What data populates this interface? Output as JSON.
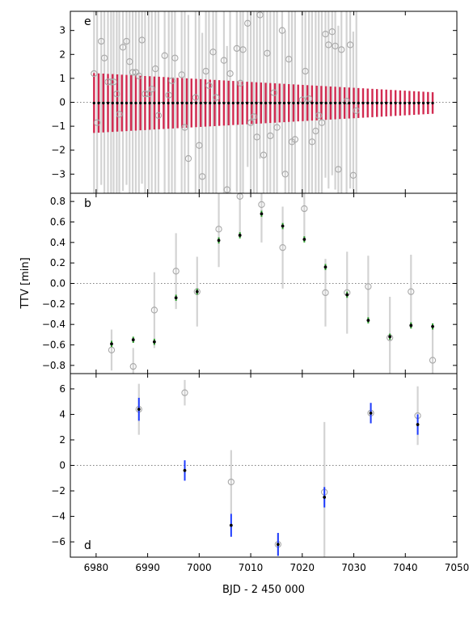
{
  "figure": {
    "ylabel": "TTV [min]",
    "xlabel": "BJD - 2 450 000"
  },
  "colors": {
    "observed": "#a8a8a8",
    "errorbar_obs": "#d3d3d3",
    "model": "#000000",
    "model_err_e": "#d22a50",
    "model_err_b": "#2ca02c",
    "model_err_d": "#1f3cff",
    "zero_line": "#808080"
  },
  "chart_data": [
    {
      "type": "scatter",
      "panel": "e",
      "xlim": [
        6975,
        7050
      ],
      "ylim": [
        -3.8,
        3.8
      ],
      "yticks": [
        -3,
        -2,
        -1,
        0,
        1,
        2,
        3
      ],
      "xticks": [
        6980,
        6990,
        7000,
        7010,
        7020,
        7030,
        7040,
        7050
      ],
      "x_start": 6979.6,
      "period": 0.9,
      "model_start": -0.03,
      "model_err_start": 1.25,
      "model_err_end": 0.45,
      "observed": [
        {
          "x": 6979.6,
          "y": 1.2
        },
        {
          "x": 6980.2,
          "y": -0.85
        },
        {
          "x": 6981.0,
          "y": 2.55
        },
        {
          "x": 6981.6,
          "y": 1.85
        },
        {
          "x": 6982.3,
          "y": 0.85
        },
        {
          "x": 6982.9,
          "y": 0.85
        },
        {
          "x": 6983.4,
          "y": 0.85
        },
        {
          "x": 6984.0,
          "y": 0.35
        },
        {
          "x": 6984.5,
          "y": -0.5
        },
        {
          "x": 6985.2,
          "y": 2.3
        },
        {
          "x": 6985.9,
          "y": 2.55
        },
        {
          "x": 6986.5,
          "y": 1.7
        },
        {
          "x": 6987.1,
          "y": 1.25
        },
        {
          "x": 6987.7,
          "y": 1.25
        },
        {
          "x": 6988.3,
          "y": 1.1
        },
        {
          "x": 6988.9,
          "y": 2.6
        },
        {
          "x": 6989.5,
          "y": 0.35
        },
        {
          "x": 6990.2,
          "y": 0.35
        },
        {
          "x": 6990.8,
          "y": 0.55
        },
        {
          "x": 6991.5,
          "y": 1.4
        },
        {
          "x": 6992.1,
          "y": -0.55
        },
        {
          "x": 6993.3,
          "y": 1.95
        },
        {
          "x": 6994.1,
          "y": 0.3
        },
        {
          "x": 6994.7,
          "y": 0.9
        },
        {
          "x": 6995.3,
          "y": 1.85
        },
        {
          "x": 6996.6,
          "y": 1.15
        },
        {
          "x": 6997.2,
          "y": -1.05
        },
        {
          "x": 6997.9,
          "y": -2.35
        },
        {
          "x": 6999.3,
          "y": 0.2
        },
        {
          "x": 7000.0,
          "y": -1.8
        },
        {
          "x": 7000.6,
          "y": -3.1
        },
        {
          "x": 7001.3,
          "y": 1.3
        },
        {
          "x": 7001.9,
          "y": 0.7
        },
        {
          "x": 7002.7,
          "y": 2.1
        },
        {
          "x": 7003.3,
          "y": 0.2
        },
        {
          "x": 7004.8,
          "y": 1.75
        },
        {
          "x": 7005.4,
          "y": -3.65
        },
        {
          "x": 7006.0,
          "y": 1.2
        },
        {
          "x": 7007.3,
          "y": 2.25
        },
        {
          "x": 7008.0,
          "y": 0.8
        },
        {
          "x": 7008.5,
          "y": 2.2
        },
        {
          "x": 7009.4,
          "y": 3.3
        },
        {
          "x": 7010.0,
          "y": -0.85
        },
        {
          "x": 7010.6,
          "y": -0.6
        },
        {
          "x": 7011.2,
          "y": -1.45
        },
        {
          "x": 7011.8,
          "y": 3.65
        },
        {
          "x": 7012.5,
          "y": -2.2
        },
        {
          "x": 7013.2,
          "y": 2.05
        },
        {
          "x": 7013.8,
          "y": -1.4
        },
        {
          "x": 7014.5,
          "y": 0.4
        },
        {
          "x": 7015.1,
          "y": -1.05
        },
        {
          "x": 7016.1,
          "y": 3.0
        },
        {
          "x": 7016.7,
          "y": -3.0
        },
        {
          "x": 7017.4,
          "y": 1.8
        },
        {
          "x": 7018.0,
          "y": -1.65
        },
        {
          "x": 7018.6,
          "y": -1.55
        },
        {
          "x": 7020.0,
          "y": 0.1
        },
        {
          "x": 7020.6,
          "y": 1.3
        },
        {
          "x": 7021.3,
          "y": 0.15
        },
        {
          "x": 7021.9,
          "y": -1.65
        },
        {
          "x": 7022.6,
          "y": -1.2
        },
        {
          "x": 7023.2,
          "y": -0.55
        },
        {
          "x": 7023.8,
          "y": -0.85
        },
        {
          "x": 7024.5,
          "y": 2.85
        },
        {
          "x": 7025.1,
          "y": 2.4
        },
        {
          "x": 7025.8,
          "y": 2.95
        },
        {
          "x": 7026.4,
          "y": 2.35
        },
        {
          "x": 7027.0,
          "y": -2.8
        },
        {
          "x": 7027.6,
          "y": 2.2
        },
        {
          "x": 7028.6,
          "y": 0.05
        },
        {
          "x": 7029.3,
          "y": 2.4
        },
        {
          "x": 7029.9,
          "y": -3.05
        },
        {
          "x": 7030.5,
          "y": -0.35
        }
      ]
    },
    {
      "type": "scatter",
      "panel": "b",
      "xlim": [
        6975,
        7050
      ],
      "ylim": [
        -0.88,
        0.88
      ],
      "yticks": [
        -0.8,
        -0.6,
        -0.4,
        -0.2,
        0.0,
        0.2,
        0.4,
        0.6,
        0.8
      ],
      "xticks": [
        6980,
        6990,
        7000,
        7010,
        7020,
        7030,
        7040,
        7050
      ],
      "points": [
        {
          "x": 6983.0,
          "obs": -0.65,
          "obs_err": 0.2,
          "model": -0.59,
          "model_err": 0.03
        },
        {
          "x": 6987.2,
          "obs": -0.81,
          "obs_err": 0.18,
          "model": -0.55,
          "model_err": 0.03
        },
        {
          "x": 6991.3,
          "obs": -0.26,
          "obs_err": 0.37,
          "model": -0.57,
          "model_err": 0.03
        },
        {
          "x": 6995.5,
          "obs": 0.12,
          "obs_err": 0.37,
          "model": -0.14,
          "model_err": 0.03
        },
        {
          "x": 6999.6,
          "obs": -0.08,
          "obs_err": 0.34,
          "model": -0.08,
          "model_err": 0.03
        },
        {
          "x": 7003.8,
          "obs": 0.53,
          "obs_err": 0.37,
          "model": 0.42,
          "model_err": 0.03
        },
        {
          "x": 7007.9,
          "obs": 0.85,
          "obs_err": 0.36,
          "model": 0.47,
          "model_err": 0.03
        },
        {
          "x": 7012.1,
          "obs": 0.77,
          "obs_err": 0.37,
          "model": 0.68,
          "model_err": 0.03
        },
        {
          "x": 7016.2,
          "obs": 0.35,
          "obs_err": 0.4,
          "model": 0.56,
          "model_err": 0.03
        },
        {
          "x": 7020.4,
          "obs": 0.73,
          "obs_err": 0.28,
          "model": 0.43,
          "model_err": 0.03
        },
        {
          "x": 7024.5,
          "obs": -0.09,
          "obs_err": 0.33,
          "model": 0.16,
          "model_err": 0.03
        },
        {
          "x": 7028.7,
          "obs": -0.09,
          "obs_err": 0.4,
          "model": -0.11,
          "model_err": 0.03
        },
        {
          "x": 7032.8,
          "obs": -0.03,
          "obs_err": 0.3,
          "model": -0.36,
          "model_err": 0.03
        },
        {
          "x": 7037.0,
          "obs": -0.53,
          "obs_err": 0.4,
          "model": -0.52,
          "model_err": 0.03
        },
        {
          "x": 7041.1,
          "obs": -0.08,
          "obs_err": 0.36,
          "model": -0.41,
          "model_err": 0.03
        },
        {
          "x": 7045.3,
          "obs": -0.75,
          "obs_err": 0.33,
          "model": -0.42,
          "model_err": 0.03
        }
      ]
    },
    {
      "type": "scatter",
      "panel": "d",
      "xlim": [
        6975,
        7050
      ],
      "ylim": [
        -7.2,
        7.2
      ],
      "yticks": [
        -6,
        -4,
        -2,
        0,
        2,
        4,
        6
      ],
      "xticks": [
        6980,
        6990,
        7000,
        7010,
        7020,
        7030,
        7040,
        7050
      ],
      "xticklabels": [
        "6980",
        "6990",
        "7000",
        "7010",
        "7020",
        "7030",
        "7040",
        "7050"
      ],
      "points": [
        {
          "x": 6988.3,
          "obs": 4.4,
          "obs_err": 2.0,
          "model": 4.4,
          "model_err": 0.9
        },
        {
          "x": 6997.2,
          "obs": 5.7,
          "obs_err": 1.0,
          "model": -0.4,
          "model_err": 0.8
        },
        {
          "x": 7006.2,
          "obs": -1.3,
          "obs_err": 2.5,
          "model": -4.7,
          "model_err": 0.9
        },
        {
          "x": 7015.3,
          "obs": -6.2,
          "obs_err": 0.9,
          "model": -6.2,
          "model_err": 0.9
        },
        {
          "x": 7024.3,
          "obs": -2.1,
          "obs_err": 5.5,
          "model": -2.5,
          "model_err": 0.8
        },
        {
          "x": 7033.3,
          "obs": 4.1,
          "obs_err": 0.8,
          "model": 4.1,
          "model_err": 0.8
        },
        {
          "x": 7042.4,
          "obs": 3.9,
          "obs_err": 2.3,
          "model": 3.2,
          "model_err": 0.8
        }
      ]
    }
  ]
}
